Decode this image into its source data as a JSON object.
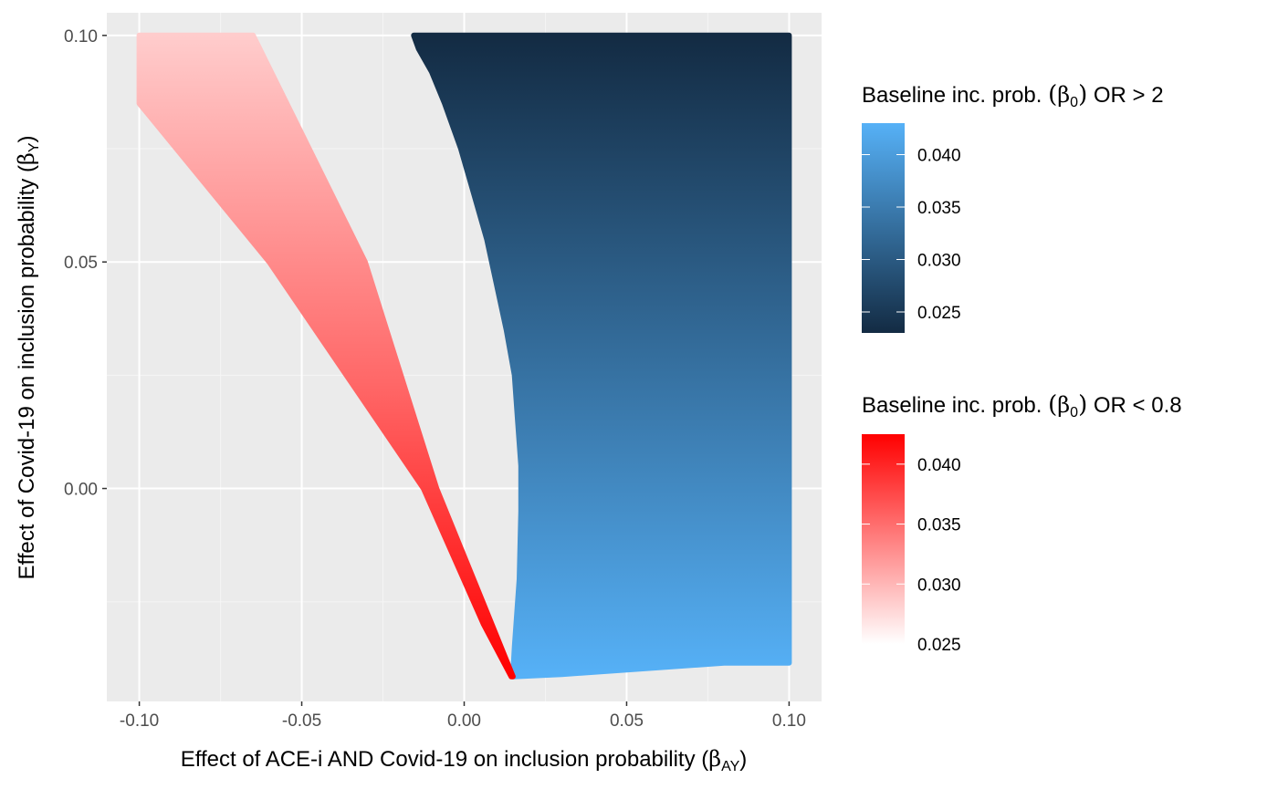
{
  "chart_data": {
    "type": "scatter",
    "xlabel": {
      "prefix": "Effect of ACE-i AND Covid-19 on inclusion probability (",
      "symbol": "β",
      "subscript": "AY",
      "suffix": ")"
    },
    "ylabel": {
      "prefix": "Effect of Covid-19 on inclusion probability (",
      "symbol": "β",
      "subscript": "Y",
      "suffix": ")"
    },
    "xlim": [
      -0.11,
      0.11
    ],
    "ylim": [
      -0.047,
      0.105
    ],
    "x_ticks": [
      {
        "value": -0.1,
        "label": "-0.10"
      },
      {
        "value": -0.05,
        "label": "-0.05"
      },
      {
        "value": 0.0,
        "label": "0.00"
      },
      {
        "value": 0.05,
        "label": "0.05"
      },
      {
        "value": 0.1,
        "label": "0.10"
      }
    ],
    "y_ticks": [
      {
        "value": 0.0,
        "label": "0.00"
      },
      {
        "value": 0.05,
        "label": "0.05"
      },
      {
        "value": 0.1,
        "label": "0.10"
      }
    ],
    "grid": true,
    "panel_background": "#ebebeb",
    "series": [
      {
        "name": "Baseline inc. prob. (β0) OR > 2",
        "color_low": "#132b43",
        "color_high": "#56b1f7",
        "color_range": [
          0.023,
          0.043
        ],
        "boundary_left": [
          {
            "y": 0.1,
            "x": -0.0155
          },
          {
            "y": 0.097,
            "x": -0.014
          },
          {
            "y": 0.092,
            "x": -0.01
          },
          {
            "y": 0.085,
            "x": -0.006
          },
          {
            "y": 0.075,
            "x": -0.001
          },
          {
            "y": 0.065,
            "x": 0.003
          },
          {
            "y": 0.055,
            "x": 0.007
          },
          {
            "y": 0.045,
            "x": 0.01
          },
          {
            "y": 0.035,
            "x": 0.013
          },
          {
            "y": 0.025,
            "x": 0.0155
          },
          {
            "y": 0.015,
            "x": 0.0165
          },
          {
            "y": 0.005,
            "x": 0.0175
          },
          {
            "y": -0.005,
            "x": 0.0175
          },
          {
            "y": -0.02,
            "x": 0.017
          },
          {
            "y": -0.035,
            "x": 0.0155
          },
          {
            "y": -0.0415,
            "x": 0.015
          }
        ],
        "boundary_right": [
          {
            "y": 0.1,
            "x": 0.1
          },
          {
            "y": -0.0385,
            "x": 0.1
          }
        ],
        "bottom_edge": [
          {
            "x": 0.015,
            "y": -0.0415
          },
          {
            "x": 0.03,
            "y": -0.041
          },
          {
            "x": 0.06,
            "y": -0.0395
          },
          {
            "x": 0.08,
            "y": -0.0385
          },
          {
            "x": 0.1,
            "y": -0.0385
          }
        ]
      },
      {
        "name": "Baseline inc. prob. (β0) OR < 0.8",
        "color_low": "#ffffff",
        "color_high": "#ff0000",
        "color_range": [
          0.025,
          0.0425
        ],
        "boundary_left": [
          {
            "y": 0.1,
            "x": -0.1
          },
          {
            "y": 0.085,
            "x": -0.1
          },
          {
            "y": 0.05,
            "x": -0.06
          },
          {
            "y": 0.0,
            "x": -0.0125
          },
          {
            "y": -0.03,
            "x": 0.006
          },
          {
            "y": -0.0415,
            "x": 0.0145
          }
        ],
        "boundary_right": [
          {
            "y": 0.1,
            "x": -0.065
          },
          {
            "y": 0.05,
            "x": -0.0305
          },
          {
            "y": 0.0,
            "x": -0.0085
          },
          {
            "y": -0.03,
            "x": 0.0085
          },
          {
            "y": -0.0415,
            "x": 0.015
          }
        ]
      }
    ],
    "legend": {
      "position": "right",
      "blue": {
        "title_prefix": "Baseline inc. prob. ",
        "symbol": "β",
        "subscript": "0",
        "title_suffix": " OR > 2",
        "ticks": [
          {
            "value": 0.025,
            "label": "0.025"
          },
          {
            "value": 0.03,
            "label": "0.030"
          },
          {
            "value": 0.035,
            "label": "0.035"
          },
          {
            "value": 0.04,
            "label": "0.040"
          }
        ]
      },
      "red": {
        "title_prefix": "Baseline inc. prob. ",
        "symbol": "β",
        "subscript": "0",
        "title_suffix": " OR < 0.8",
        "ticks": [
          {
            "value": 0.025,
            "label": "0.025"
          },
          {
            "value": 0.03,
            "label": "0.030"
          },
          {
            "value": 0.035,
            "label": "0.035"
          },
          {
            "value": 0.04,
            "label": "0.040"
          }
        ]
      }
    }
  }
}
